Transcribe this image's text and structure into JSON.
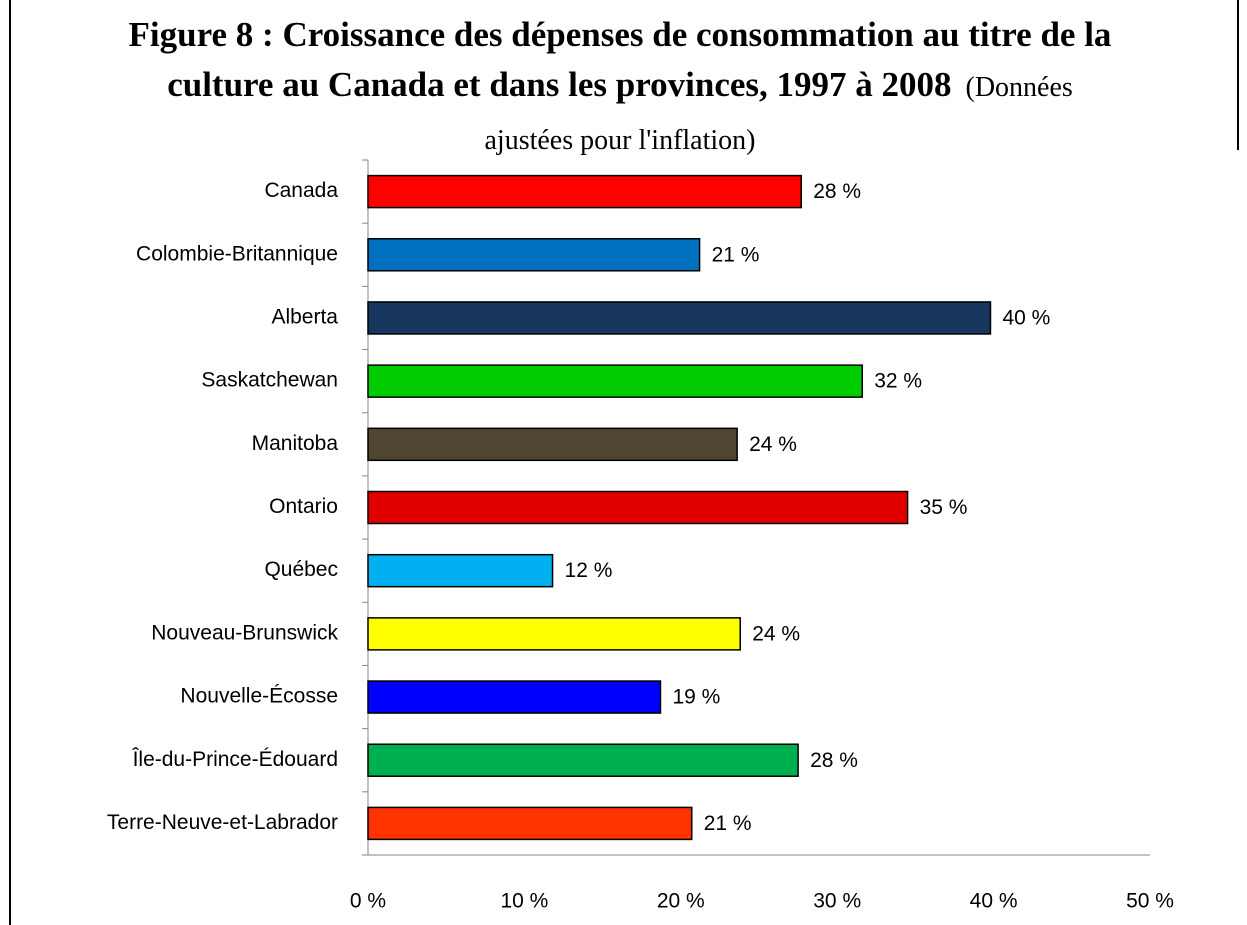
{
  "chart_data": {
    "type": "barh",
    "title": "Figure 8 : Croissance des dépenses de consommation au titre de la culture au Canada et dans les provinces, 1997 à 2008",
    "subtitle": "(Données ajustées pour l'inflation)",
    "categories": [
      "Canada",
      "Colombie-Britannique",
      "Alberta",
      "Saskatchewan",
      "Manitoba",
      "Ontario",
      "Québec",
      "Nouveau-Brunswick",
      "Nouvelle-Écosse",
      "Île-du-Prince-Édouard",
      "Terre-Neuve-et-Labrador"
    ],
    "values": [
      27.7,
      21.2,
      39.8,
      31.6,
      23.6,
      34.5,
      11.8,
      23.8,
      18.7,
      27.5,
      20.7
    ],
    "value_labels": [
      "28 %",
      "21 %",
      "40 %",
      "32 %",
      "24 %",
      "35 %",
      "12 %",
      "24 %",
      "19 %",
      "28 %",
      "21 %"
    ],
    "colors": [
      "#ff0000",
      "#0070c0",
      "#17375e",
      "#00cc00",
      "#4f4530",
      "#e00000",
      "#00b0f0",
      "#ffff00",
      "#0000ff",
      "#00b050",
      "#ff3300"
    ],
    "xlim": [
      0,
      50
    ],
    "xticks": [
      {
        "value": 0,
        "label": "0 %"
      },
      {
        "value": 10,
        "label": "10 %"
      },
      {
        "value": 20,
        "label": "20 %"
      },
      {
        "value": 30,
        "label": "30 %"
      },
      {
        "value": 40,
        "label": "40 %"
      },
      {
        "value": 50,
        "label": "50 %"
      }
    ],
    "grid": false
  }
}
